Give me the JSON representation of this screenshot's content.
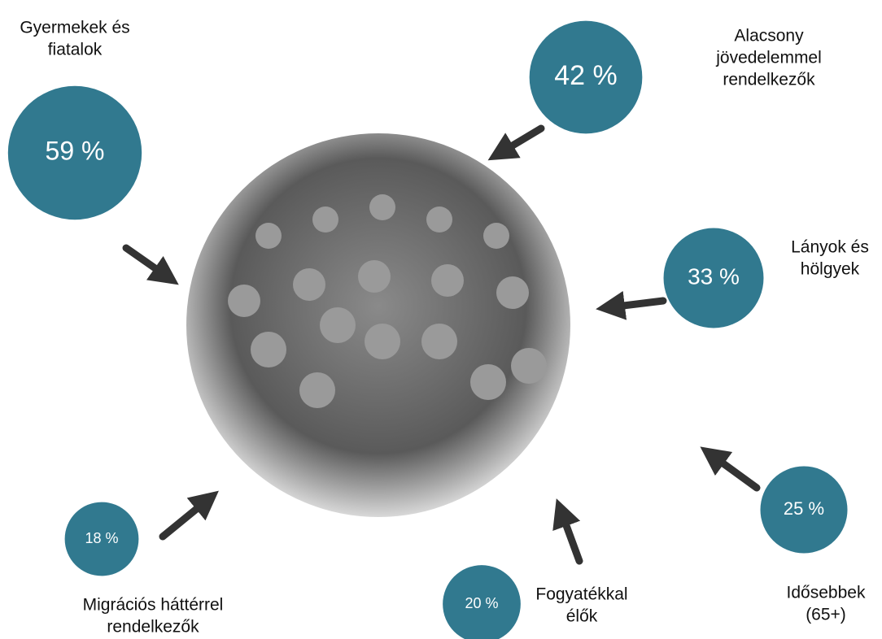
{
  "nodes": [
    {
      "label": [
        "Gyermekek és",
        "fiatalok"
      ],
      "value": 59,
      "value_label": "59 %"
    },
    {
      "label": [
        "Alacsony",
        "jövedelemmel",
        "rendelkezők"
      ],
      "value": 42,
      "value_label": "42 %"
    },
    {
      "label": [
        "Lányok és",
        "hölgyek"
      ],
      "value": 33,
      "value_label": "33 %"
    },
    {
      "label": [
        "Idősebbek",
        "(65+)"
      ],
      "value": 25,
      "value_label": "25 %"
    },
    {
      "label": [
        "Fogyatékkal",
        "élők"
      ],
      "value": 20,
      "value_label": "20 %"
    },
    {
      "label": [
        "Migrációs háttérrel",
        "rendelkezők"
      ],
      "value": 18,
      "value_label": "18 %"
    }
  ]
}
